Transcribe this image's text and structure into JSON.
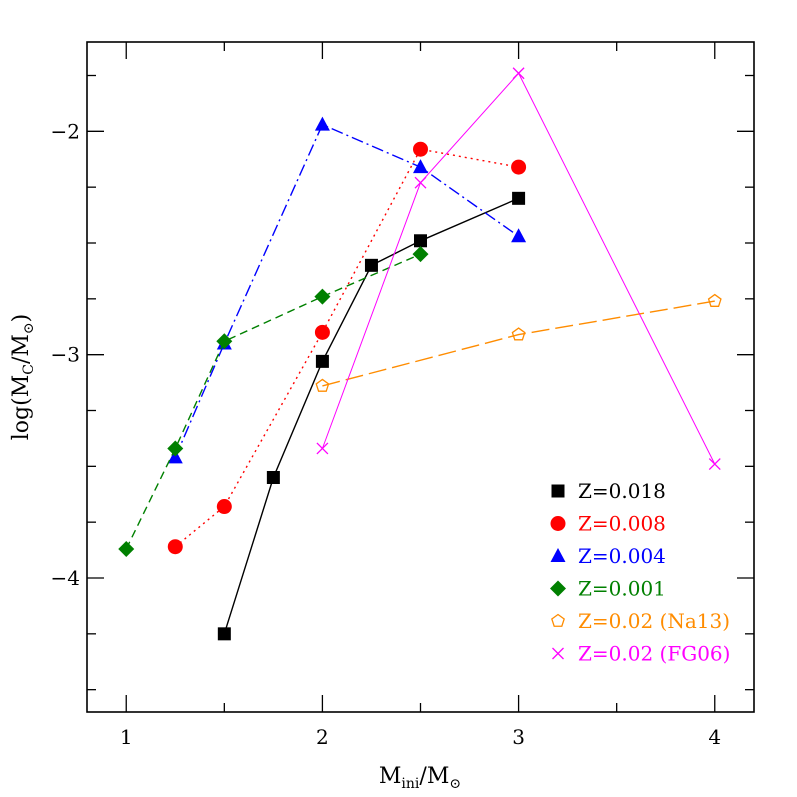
{
  "chart_data": {
    "type": "line",
    "xlabel_main": "M",
    "xlabel_sub": "ini",
    "xlabel_sep": "/M",
    "xlabel_sun": "⊙",
    "ylabel_pre": "log(M",
    "ylabel_sub": "C",
    "ylabel_sep": "/M",
    "ylabel_sun": "⊙",
    "ylabel_post": ")",
    "xlim": [
      0.8,
      4.2
    ],
    "ylim": [
      -4.6,
      -1.6
    ],
    "x_tick_labels": [
      "1",
      "2",
      "3",
      "4"
    ],
    "y_tick_labels": [
      "−2",
      "−3",
      "−4"
    ],
    "series": [
      {
        "name": "Z=0.018",
        "color": "#000000",
        "marker": "square",
        "line": "solid",
        "x": [
          1.5,
          1.75,
          2.0,
          2.25,
          2.5,
          3.0
        ],
        "y": [
          -4.25,
          -3.55,
          -3.03,
          -2.6,
          -2.49,
          -2.3
        ]
      },
      {
        "name": "Z=0.008",
        "color": "#ff0000",
        "marker": "circle",
        "line": "dotted",
        "x": [
          1.25,
          1.5,
          2.0,
          2.5,
          3.0
        ],
        "y": [
          -3.86,
          -3.68,
          -2.9,
          -2.08,
          -2.16
        ]
      },
      {
        "name": "Z=0.004",
        "color": "#0000ff",
        "marker": "triangle",
        "line": "dashdot",
        "x": [
          1.25,
          1.5,
          2.0,
          2.5,
          3.0
        ],
        "y": [
          -3.46,
          -2.95,
          -1.97,
          -2.16,
          -2.47
        ]
      },
      {
        "name": "Z=0.001",
        "color": "#008000",
        "marker": "diamond",
        "line": "dashed",
        "x": [
          1.0,
          1.25,
          1.5,
          2.0,
          2.5
        ],
        "y": [
          -3.87,
          -3.42,
          -2.94,
          -2.74,
          -2.55
        ]
      },
      {
        "name": "Z=0.02 (Na13)",
        "color": "#ff8c00",
        "marker": "pentagon",
        "line": "longdash",
        "x": [
          2.0,
          3.0,
          4.0
        ],
        "y": [
          -3.14,
          -2.91,
          -2.76
        ]
      },
      {
        "name": "Z=0.02 (FG06)",
        "color": "#ff00ff",
        "marker": "cross",
        "line": "thin",
        "x": [
          2.0,
          2.5,
          3.0,
          4.0
        ],
        "y": [
          -3.42,
          -2.23,
          -1.74,
          -3.49
        ]
      }
    ]
  }
}
